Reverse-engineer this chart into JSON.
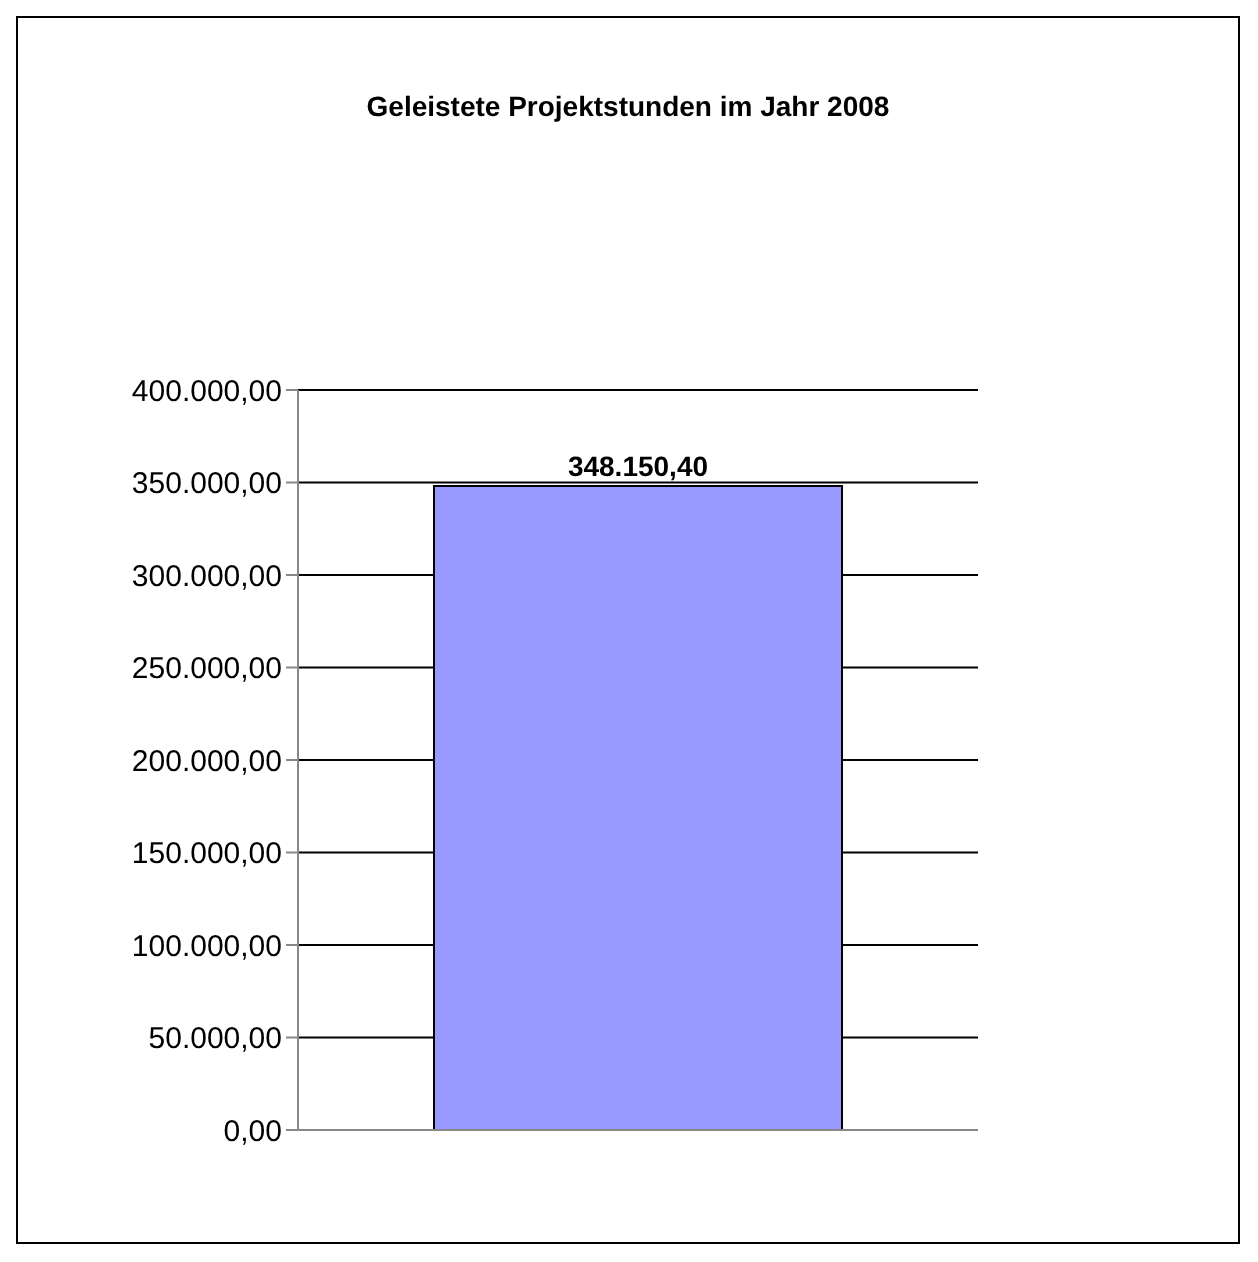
{
  "chart_data": {
    "type": "bar",
    "title": "Geleistete Projektstunden im Jahr 2008",
    "categories": [
      null
    ],
    "values": [
      348150.4
    ],
    "color": "#9999ff",
    "value_labels": [
      "348.150,40"
    ],
    "ylim": [
      0,
      400000
    ],
    "yticks": [
      {
        "value": 0,
        "label": "0,00"
      },
      {
        "value": 50000,
        "label": "50.000,00"
      },
      {
        "value": 100000,
        "label": "100.000,00"
      },
      {
        "value": 150000,
        "label": "150.000,00"
      },
      {
        "value": 200000,
        "label": "200.000,00"
      },
      {
        "value": 250000,
        "label": "250.000,00"
      },
      {
        "value": 300000,
        "label": "300.000,00"
      },
      {
        "value": 350000,
        "label": "350.000,00"
      },
      {
        "value": 400000,
        "label": "400.000,00"
      }
    ],
    "grid": "y"
  }
}
